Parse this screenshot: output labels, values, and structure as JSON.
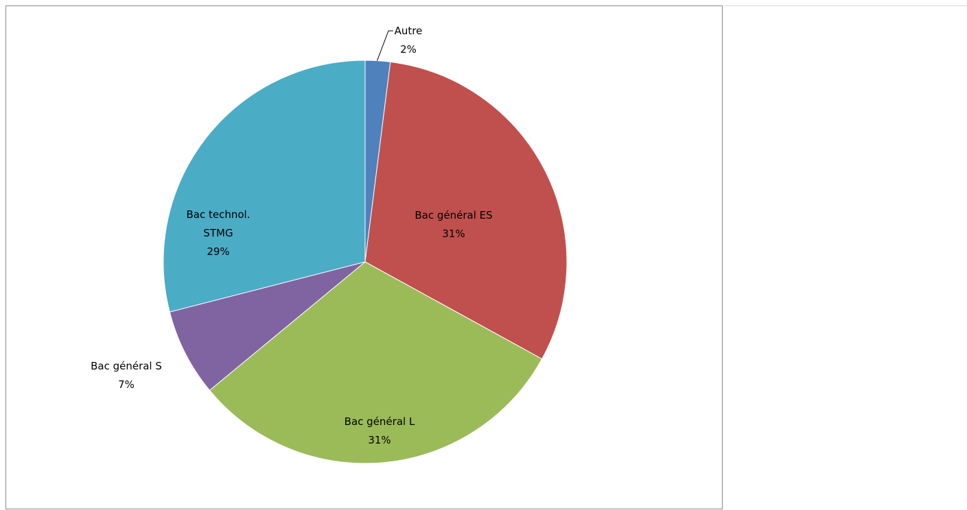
{
  "chart_data": {
    "type": "pie",
    "slices": [
      {
        "label": "Autre",
        "percent_label": "2%",
        "value": 2,
        "color": "#4f81bd"
      },
      {
        "label": "Bac général ES",
        "percent_label": "31%",
        "value": 31,
        "color": "#c0504d"
      },
      {
        "label": "Bac général L",
        "percent_label": "31%",
        "value": 31,
        "color": "#9bbb59"
      },
      {
        "label": "Bac général S",
        "percent_label": "7%",
        "value": 7,
        "color": "#8064a2"
      },
      {
        "label": "Bac technol. STMG",
        "label_lines": [
          "Bac technol.",
          "STMG"
        ],
        "percent_label": "29%",
        "value": 29,
        "color": "#4bacc6"
      }
    ],
    "legend": "none",
    "start": "top, clockwise"
  }
}
